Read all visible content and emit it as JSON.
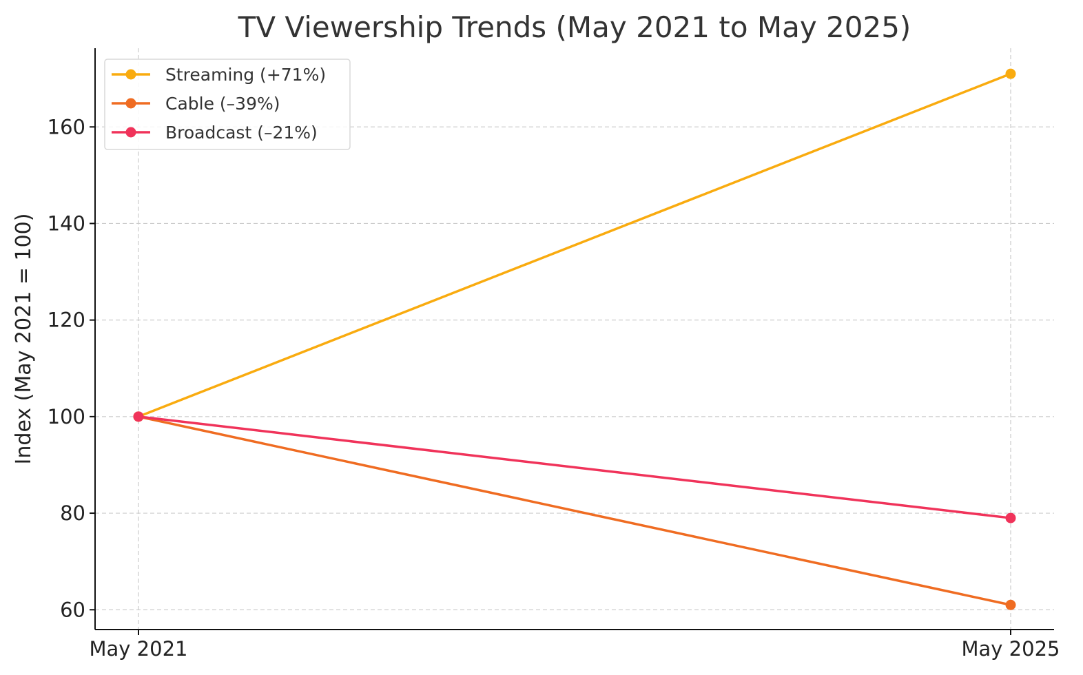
{
  "chart_data": {
    "type": "line",
    "title": "TV Viewership Trends (May 2021 to May 2025)",
    "xlabel": "",
    "ylabel": "Index (May 2021 = 100)",
    "categories": [
      "May 2021",
      "May 2025"
    ],
    "y_ticks": [
      60,
      80,
      100,
      120,
      140,
      160
    ],
    "ylim": [
      55.9,
      176.3
    ],
    "grid": true,
    "legend_position": "top-left",
    "series": [
      {
        "name": "Streaming (+71%)",
        "values": [
          100,
          171
        ],
        "color": "#f9ab0f"
      },
      {
        "name": "Cable (–39%)",
        "values": [
          100,
          61
        ],
        "color": "#ef6c22"
      },
      {
        "name": "Broadcast (–21%)",
        "values": [
          100,
          79
        ],
        "color": "#f0335a"
      }
    ]
  }
}
